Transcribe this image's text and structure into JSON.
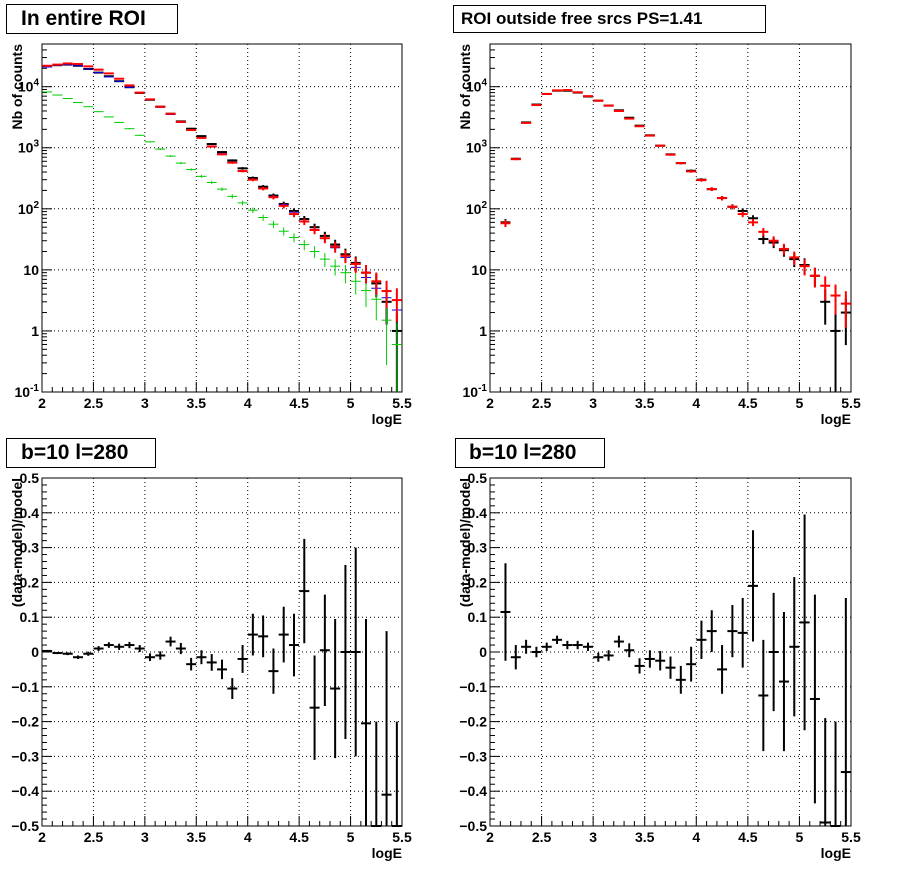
{
  "colors": {
    "data": "#000000",
    "model": "#ff0000",
    "blue": "#0000ff",
    "green": "#00cc00",
    "grid": "#000000"
  },
  "chart_data": [
    {
      "type": "scatter",
      "title": "In entire ROI",
      "xlabel": "logE",
      "ylabel": "Nb of counts",
      "log_y": true,
      "xlim": [
        2,
        5.5
      ],
      "ylim": [
        0.1,
        50000
      ],
      "x_ticks": [
        "2",
        "2.5",
        "3",
        "3.5",
        "4",
        "4.5",
        "5",
        "5.5"
      ],
      "y_ticks": [
        "10^-1",
        "1",
        "10",
        "10^2",
        "10^3",
        "10^4"
      ],
      "grid": true,
      "x": [
        2.05,
        2.15,
        2.25,
        2.35,
        2.45,
        2.55,
        2.65,
        2.75,
        2.85,
        2.95,
        3.05,
        3.15,
        3.25,
        3.35,
        3.45,
        3.55,
        3.65,
        3.75,
        3.85,
        3.95,
        4.05,
        4.15,
        4.25,
        4.35,
        4.45,
        4.55,
        4.65,
        4.75,
        4.85,
        4.95,
        5.05,
        5.15,
        5.25,
        5.35,
        5.45
      ],
      "series": [
        {
          "color": "#000000",
          "values": [
            21500,
            22500,
            23000,
            22000,
            19500,
            17000,
            14800,
            12300,
            9800,
            7900,
            6100,
            4700,
            3600,
            2700,
            2050,
            1550,
            1150,
            850,
            620,
            460,
            320,
            230,
            165,
            120,
            92,
            68,
            50,
            36,
            26,
            18,
            13,
            9,
            6,
            3,
            1
          ]
        },
        {
          "color": "#0000ff",
          "values": [
            21000,
            22500,
            23000,
            22000,
            19500,
            17000,
            14500,
            12300,
            9800,
            7900,
            6100,
            4600,
            3500,
            2600,
            1950,
            1450,
            1050,
            800,
            580,
            420,
            305,
            220,
            160,
            118,
            88,
            62,
            46,
            33,
            23,
            16,
            11,
            7.5,
            5,
            3.5,
            2.2
          ]
        },
        {
          "color": "#00cc00",
          "values": [
            8200,
            7300,
            6400,
            5500,
            4700,
            3900,
            3200,
            2600,
            2050,
            1600,
            1250,
            950,
            730,
            560,
            440,
            340,
            270,
            210,
            160,
            125,
            95,
            72,
            56,
            43,
            34,
            26,
            20,
            15,
            11.5,
            9,
            6.5,
            4.6,
            3.3,
            1.5,
            0.6
          ]
        },
        {
          "color": "#ff0000",
          "values": [
            22000,
            23000,
            24000,
            23500,
            21500,
            19000,
            16500,
            13500,
            10500,
            8000,
            6200,
            4700,
            3600,
            2650,
            1950,
            1450,
            1050,
            780,
            570,
            415,
            300,
            215,
            155,
            112,
            82,
            62,
            45,
            33,
            24,
            17,
            12.5,
            9,
            6.5,
            4.5,
            3.2
          ]
        }
      ]
    },
    {
      "type": "scatter",
      "title": "ROI outside free srcs PS=1.41",
      "xlabel": "logE",
      "ylabel": "Nb of counts",
      "log_y": true,
      "xlim": [
        2,
        5.5
      ],
      "ylim": [
        0.1,
        50000
      ],
      "x_ticks": [
        "2",
        "2.5",
        "3",
        "3.5",
        "4",
        "4.5",
        "5",
        "5.5"
      ],
      "y_ticks": [
        "10^-1",
        "1",
        "10",
        "10^2",
        "10^3",
        "10^4"
      ],
      "grid": true,
      "x": [
        2.15,
        2.25,
        2.35,
        2.45,
        2.55,
        2.65,
        2.75,
        2.85,
        2.95,
        3.05,
        3.15,
        3.25,
        3.35,
        3.45,
        3.55,
        3.65,
        3.75,
        3.85,
        3.95,
        4.05,
        4.15,
        4.25,
        4.35,
        4.45,
        4.55,
        4.65,
        4.75,
        4.85,
        4.95,
        5.05,
        5.15,
        5.25,
        5.35,
        5.45
      ],
      "series": [
        {
          "color": "#000000",
          "values": [
            60,
            660,
            2600,
            5100,
            7600,
            8600,
            8600,
            8000,
            6900,
            5900,
            4900,
            4100,
            3100,
            2300,
            1600,
            1080,
            780,
            560,
            420,
            300,
            210,
            150,
            108,
            92,
            70,
            32,
            28,
            21,
            15,
            12,
            8,
            3,
            1,
            2
          ]
        },
        {
          "color": "#ff0000",
          "values": [
            58,
            650,
            2550,
            5000,
            7600,
            8700,
            8800,
            8100,
            7000,
            5900,
            4900,
            4000,
            3000,
            2250,
            1580,
            1080,
            770,
            560,
            410,
            295,
            210,
            150,
            108,
            82,
            60,
            42,
            30,
            22,
            16,
            11.5,
            8,
            5.5,
            3.8,
            2.8
          ]
        }
      ]
    },
    {
      "type": "scatter",
      "title": "b=10 l=280",
      "xlabel": "logE",
      "ylabel": "(data-model)/model",
      "xlim": [
        2,
        5.5
      ],
      "ylim": [
        -0.5,
        0.5
      ],
      "x_ticks": [
        "2",
        "2.5",
        "3",
        "3.5",
        "4",
        "4.5",
        "5",
        "5.5"
      ],
      "y_ticks": [
        "-0.5",
        "-0.4",
        "-0.3",
        "-0.2",
        "-0.1",
        "0",
        "0.1",
        "0.2",
        "0.3",
        "0.4",
        "0.5"
      ],
      "grid": true,
      "x": [
        2.05,
        2.15,
        2.25,
        2.35,
        2.45,
        2.55,
        2.65,
        2.75,
        2.85,
        2.95,
        3.05,
        3.15,
        3.25,
        3.35,
        3.45,
        3.55,
        3.65,
        3.75,
        3.85,
        3.95,
        4.05,
        4.15,
        4.25,
        4.35,
        4.45,
        4.55,
        4.65,
        4.75,
        4.85,
        4.95,
        5.05,
        5.15,
        5.25,
        5.35,
        5.45
      ],
      "values": [
        0.003,
        -0.003,
        -0.005,
        -0.015,
        -0.005,
        0.01,
        0.02,
        0.015,
        0.02,
        0.01,
        -0.015,
        -0.01,
        0.03,
        0.01,
        -0.035,
        -0.015,
        -0.03,
        -0.05,
        -0.105,
        -0.02,
        0.05,
        0.045,
        -0.055,
        0.05,
        0.02,
        0.175,
        -0.16,
        0.005,
        -0.105,
        0.0,
        0.0,
        -0.205,
        -0.5,
        -0.41,
        -0.5
      ],
      "errors": [
        0.003,
        0.003,
        0.004,
        0.005,
        0.006,
        0.007,
        0.008,
        0.009,
        0.009,
        0.01,
        0.011,
        0.012,
        0.014,
        0.016,
        0.018,
        0.02,
        0.024,
        0.028,
        0.03,
        0.04,
        0.06,
        0.06,
        0.065,
        0.08,
        0.09,
        0.15,
        0.15,
        0.16,
        0.2,
        0.25,
        0.3,
        0.3,
        0.3,
        0.47,
        0.3
      ]
    },
    {
      "type": "scatter",
      "title": "b=10 l=280",
      "xlabel": "logE",
      "ylabel": "(data-model)/model",
      "xlim": [
        2,
        5.5
      ],
      "ylim": [
        -0.5,
        0.5
      ],
      "x_ticks": [
        "2",
        "2.5",
        "3",
        "3.5",
        "4",
        "4.5",
        "5",
        "5.5"
      ],
      "y_ticks": [
        "-0.5",
        "-0.4",
        "-0.3",
        "-0.2",
        "-0.1",
        "0",
        "0.1",
        "0.2",
        "0.3",
        "0.4",
        "0.5"
      ],
      "grid": true,
      "x": [
        2.15,
        2.25,
        2.35,
        2.45,
        2.55,
        2.65,
        2.75,
        2.85,
        2.95,
        3.05,
        3.15,
        3.25,
        3.35,
        3.45,
        3.55,
        3.65,
        3.75,
        3.85,
        3.95,
        4.05,
        4.15,
        4.25,
        4.35,
        4.45,
        4.55,
        4.65,
        4.75,
        4.85,
        4.95,
        5.05,
        5.15,
        5.25,
        5.35,
        5.45
      ],
      "values": [
        0.115,
        -0.015,
        0.015,
        0.0,
        0.015,
        0.035,
        0.02,
        0.02,
        0.015,
        -0.015,
        -0.01,
        0.03,
        0.005,
        -0.04,
        -0.02,
        -0.025,
        -0.045,
        -0.08,
        -0.035,
        0.035,
        0.06,
        -0.05,
        0.06,
        0.055,
        0.19,
        -0.125,
        0.0,
        -0.085,
        0.015,
        0.085,
        -0.135,
        -0.49,
        -0.5,
        -0.345
      ],
      "errors": [
        0.14,
        0.035,
        0.02,
        0.015,
        0.012,
        0.012,
        0.012,
        0.012,
        0.012,
        0.013,
        0.015,
        0.017,
        0.02,
        0.022,
        0.025,
        0.028,
        0.032,
        0.04,
        0.05,
        0.055,
        0.06,
        0.07,
        0.075,
        0.1,
        0.16,
        0.16,
        0.17,
        0.2,
        0.2,
        0.31,
        0.3,
        0.3,
        0.3,
        0.5
      ]
    }
  ]
}
